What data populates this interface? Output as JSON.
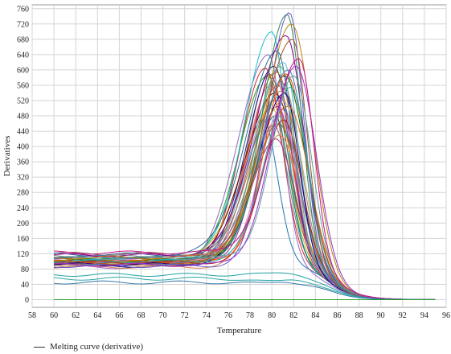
{
  "chart_data": {
    "type": "line",
    "xlabel": "Temperature",
    "ylabel": "Derivatives",
    "xlim": [
      58,
      96
    ],
    "ylim": [
      -20,
      770
    ],
    "x_ticks": [
      58,
      60,
      62,
      64,
      66,
      68,
      70,
      72,
      74,
      76,
      78,
      80,
      82,
      84,
      86,
      88,
      90,
      92,
      94,
      96
    ],
    "y_ticks": [
      0,
      40,
      80,
      120,
      160,
      200,
      240,
      280,
      320,
      360,
      400,
      440,
      480,
      520,
      560,
      600,
      640,
      680,
      720,
      760
    ],
    "grid": true,
    "legend_position": "bottom-left",
    "legend_entries": [
      "Melting curve (derivative)"
    ],
    "x_start": 60,
    "x_end": 95,
    "curve_count": 47,
    "peak_temperatures": [
      79.2,
      79.4,
      79.6,
      79.7,
      79.8,
      79.9,
      80,
      80,
      80.1,
      80.2,
      80.2,
      80.3,
      80.3,
      80.4,
      80.4,
      80.5,
      80.5,
      80.6,
      80.6,
      80.7,
      80.7,
      80.8,
      80.8,
      80.9,
      80.9,
      81,
      81,
      81.1,
      81.1,
      81.2,
      81.2,
      81.3,
      81.3,
      81.4,
      81.5,
      81.5,
      81.6,
      81.7,
      81.8,
      81.9,
      82,
      82.2,
      82.5,
      80.5,
      80.2,
      79.9,
      80
    ],
    "peak_heights": [
      470,
      605,
      585,
      640,
      590,
      560,
      700,
      500,
      520,
      455,
      610,
      540,
      480,
      420,
      595,
      650,
      505,
      460,
      560,
      530,
      430,
      610,
      480,
      545,
      500,
      565,
      520,
      620,
      470,
      585,
      540,
      690,
      590,
      745,
      600,
      505,
      750,
      555,
      720,
      680,
      585,
      610,
      630,
      50,
      70,
      45,
      0
    ],
    "baseline_values": [
      100,
      95,
      110,
      85,
      120,
      90,
      105,
      100,
      95,
      112,
      88,
      102,
      98,
      107,
      93,
      118,
      99,
      104,
      96,
      111,
      86,
      100,
      108,
      94,
      101,
      113,
      90,
      105,
      97,
      103,
      92,
      116,
      99,
      107,
      95,
      110,
      88,
      101,
      104,
      96,
      109,
      91,
      123,
      55,
      65,
      45,
      0
    ],
    "series_colors": [
      "#1f77b4",
      "#d62728",
      "#2ca02c",
      "#9467bd",
      "#8c564b",
      "#e377c2",
      "#17becf",
      "#bcbd22",
      "#ff7f0e",
      "#7f7f7f",
      "#1a1a80",
      "#800000",
      "#008080",
      "#aa3377",
      "#cc6600",
      "#336699",
      "#993399",
      "#3a7d44",
      "#c44e52",
      "#4c72b0",
      "#dd8452",
      "#55a868",
      "#8172b3",
      "#937860",
      "#da8bc3",
      "#8c8c8c",
      "#ccb974",
      "#64b5cd",
      "#b22222",
      "#006400",
      "#00008b",
      "#8b008b",
      "#ff4500",
      "#2e8b57",
      "#4682b4",
      "#d2691e",
      "#6a5acd",
      "#20b2aa",
      "#b8860b",
      "#a0522d",
      "#5f9ea0",
      "#9932cc",
      "#c71585",
      "#2aa5a5",
      "#1f9f9f",
      "#3377aa",
      "#2a9d2a"
    ]
  }
}
